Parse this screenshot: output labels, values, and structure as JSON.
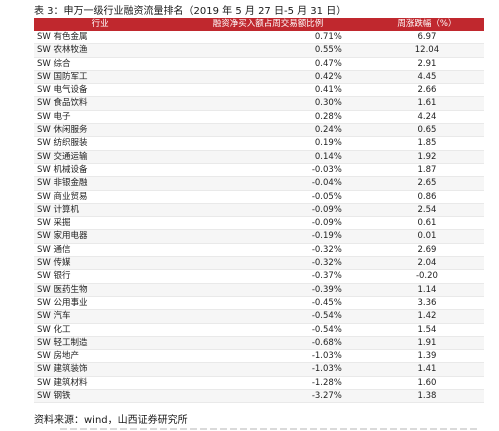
{
  "caption": "表 3：申万一级行业融资流量排名（2019 年 5 月 27 日-5 月 31 日）",
  "headers": [
    "行业",
    "融资净买入额占周交易额比例",
    "周涨跌幅（%）"
  ],
  "rows": [
    [
      "SW 有色金属",
      "0.71%",
      "6.97"
    ],
    [
      "SW 农林牧渔",
      "0.55%",
      "12.04"
    ],
    [
      "SW 综合",
      "0.47%",
      "2.91"
    ],
    [
      "SW 国防军工",
      "0.42%",
      "4.45"
    ],
    [
      "SW 电气设备",
      "0.41%",
      "2.66"
    ],
    [
      "SW 食品饮料",
      "0.30%",
      "1.61"
    ],
    [
      "SW 电子",
      "0.28%",
      "4.24"
    ],
    [
      "SW 休闲服务",
      "0.24%",
      "0.65"
    ],
    [
      "SW 纺织服装",
      "0.19%",
      "1.85"
    ],
    [
      "SW 交通运输",
      "0.14%",
      "1.92"
    ],
    [
      "SW 机械设备",
      "-0.03%",
      "1.87"
    ],
    [
      "SW 非银金融",
      "-0.04%",
      "2.65"
    ],
    [
      "SW 商业贸易",
      "-0.05%",
      "0.86"
    ],
    [
      "SW 计算机",
      "-0.09%",
      "2.54"
    ],
    [
      "SW 采掘",
      "-0.09%",
      "0.61"
    ],
    [
      "SW 家用电器",
      "-0.19%",
      "0.01"
    ],
    [
      "SW 通信",
      "-0.32%",
      "2.69"
    ],
    [
      "SW 传媒",
      "-0.32%",
      "2.04"
    ],
    [
      "SW 银行",
      "-0.37%",
      "-0.20"
    ],
    [
      "SW 医药生物",
      "-0.39%",
      "1.14"
    ],
    [
      "SW 公用事业",
      "-0.45%",
      "3.36"
    ],
    [
      "SW 汽车",
      "-0.54%",
      "1.42"
    ],
    [
      "SW 化工",
      "-0.54%",
      "1.54"
    ],
    [
      "SW 轻工制造",
      "-0.68%",
      "1.91"
    ],
    [
      "SW 房地产",
      "-1.03%",
      "1.39"
    ],
    [
      "SW 建筑装饰",
      "-1.03%",
      "1.41"
    ],
    [
      "SW 建筑材料",
      "-1.28%",
      "1.60"
    ],
    [
      "SW 钢铁",
      "-3.27%",
      "1.38"
    ]
  ],
  "source": "资料来源：wind，山西证券研究所",
  "colors": {
    "header_bg": "#c0282e",
    "header_text": "#ffffff",
    "row_alt": "#f6f6f6"
  }
}
